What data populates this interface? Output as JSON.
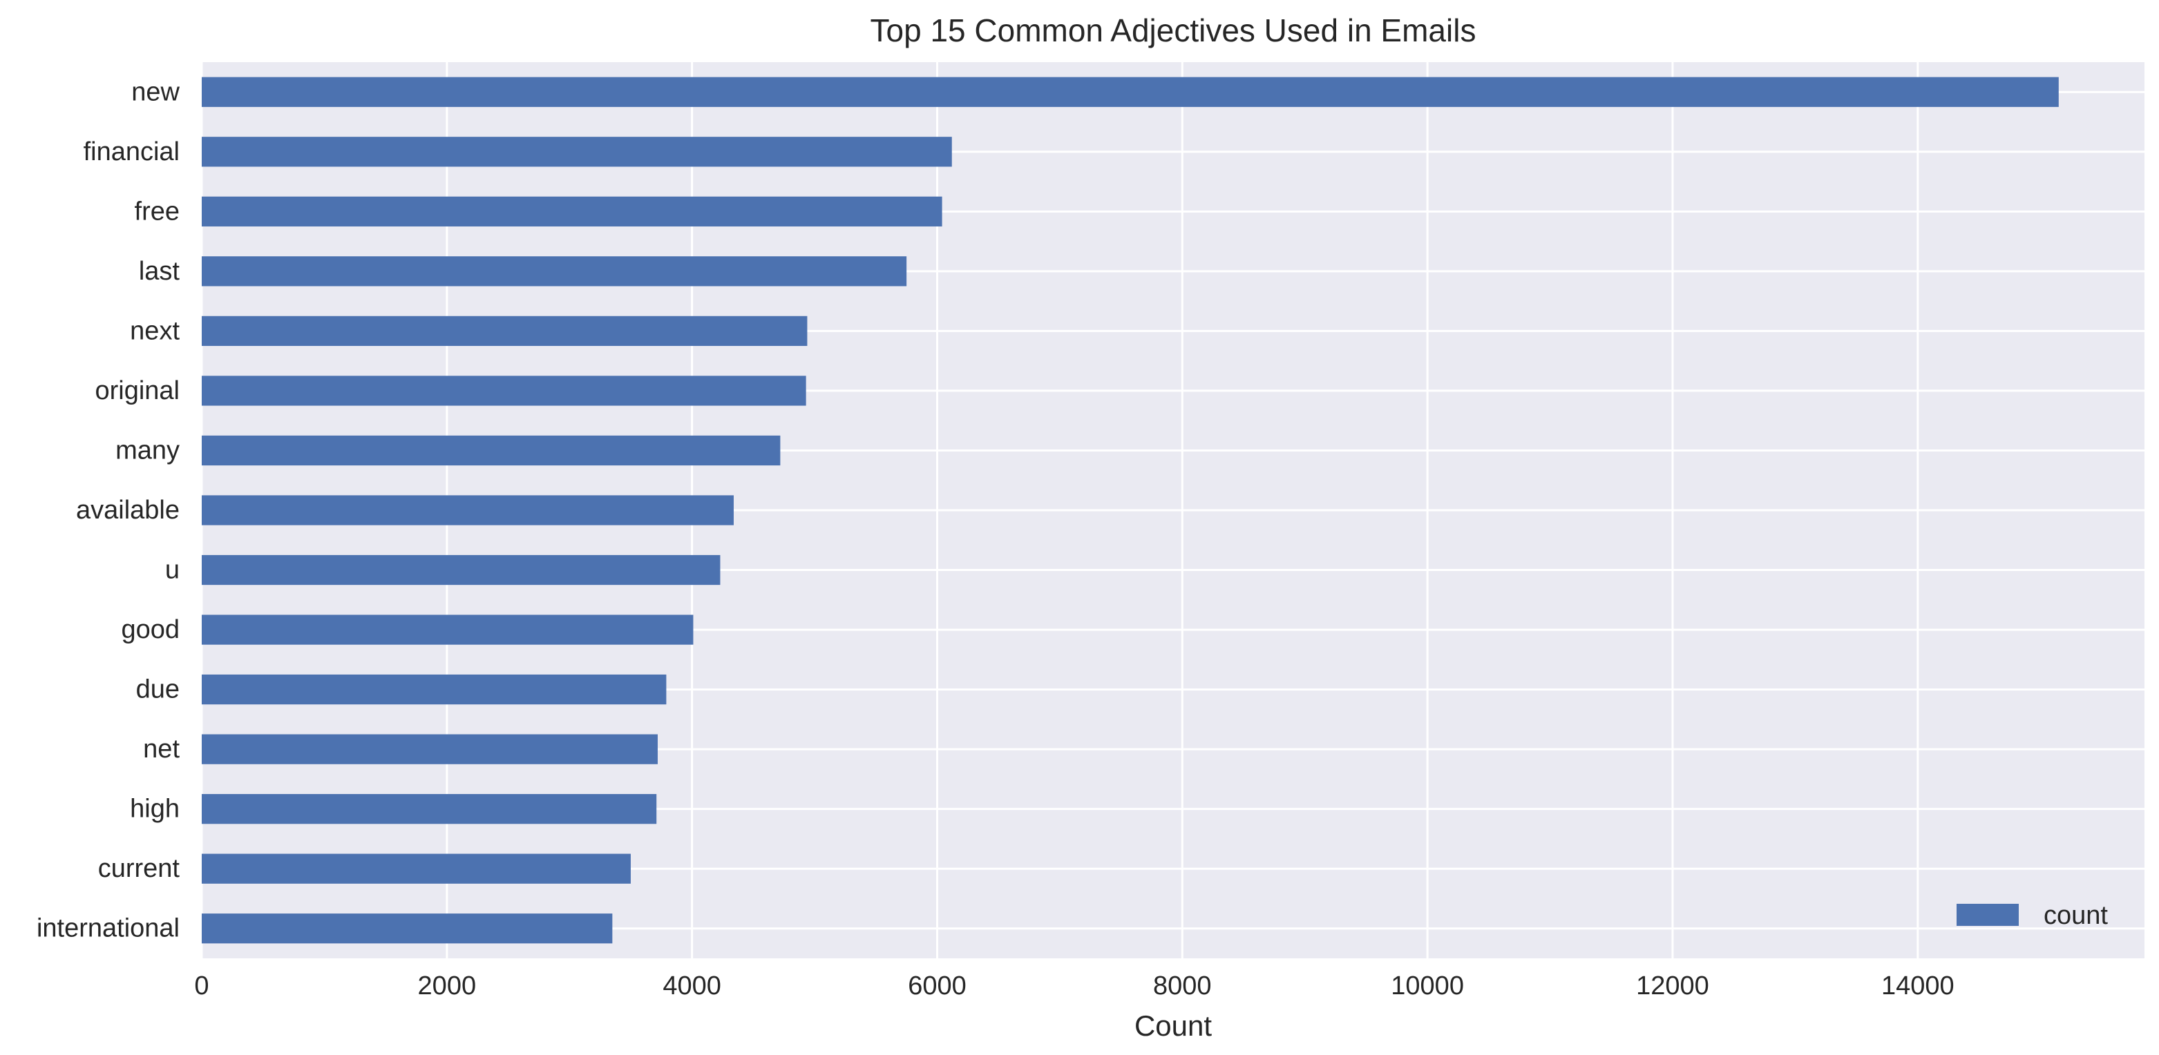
{
  "chart_data": {
    "type": "bar",
    "orientation": "horizontal",
    "title": "Top 15 Common Adjectives Used in Emails",
    "xlabel": "Count",
    "ylabel": "",
    "categories": [
      "new",
      "financial",
      "free",
      "last",
      "next",
      "original",
      "many",
      "available",
      "u",
      "good",
      "due",
      "net",
      "high",
      "current",
      "international"
    ],
    "series": [
      {
        "name": "count",
        "values": [
          15150,
          6120,
          6040,
          5750,
          4940,
          4930,
          4720,
          4340,
          4230,
          4010,
          3790,
          3720,
          3710,
          3500,
          3350
        ]
      }
    ],
    "xlim": [
      0,
      15850
    ],
    "xticks": [
      0,
      2000,
      4000,
      6000,
      8000,
      10000,
      12000,
      14000
    ],
    "grid": true,
    "legend": "bottom-right",
    "colors": {
      "bar": "#4c72b0",
      "plot_background": "#eaeaf2",
      "grid": "#ffffff",
      "text": "#262626"
    }
  }
}
